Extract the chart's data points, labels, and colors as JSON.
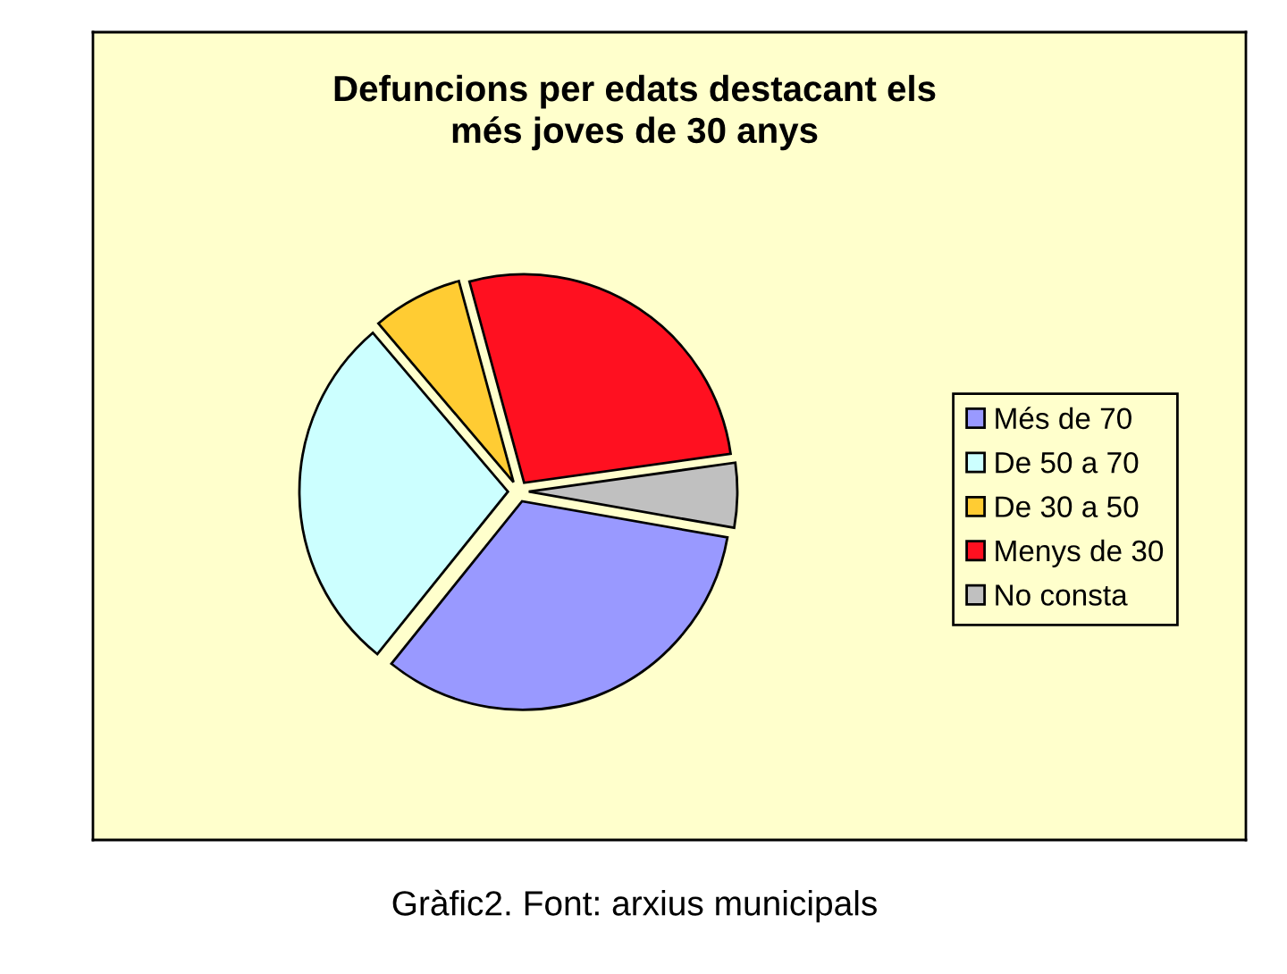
{
  "chart_data": {
    "type": "pie",
    "title": "Defuncions per edats destacant els\nmés joves de 30 anys",
    "categories": [
      "Més de 70",
      "De 50 a 70",
      "De 30 a 50",
      "Menys de 30",
      "No consta"
    ],
    "values": [
      33,
      28,
      7,
      27,
      5
    ],
    "colors": [
      "#9999ff",
      "#ccffff",
      "#ffcc33",
      "#ff1020",
      "#c0c0c0"
    ],
    "legend": "right",
    "annotations": [
      "Gràfic2. Font: arxius municipals"
    ]
  }
}
